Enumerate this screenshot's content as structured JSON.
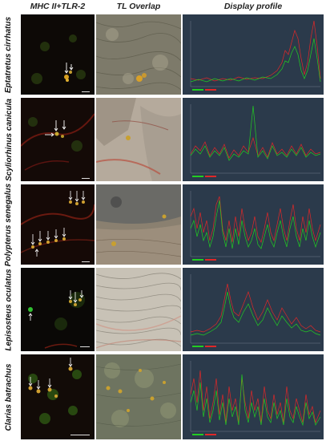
{
  "headers": {
    "col1": "MHC II+TLR-2",
    "col2": "TL Overlap",
    "col3": "Display profile"
  },
  "rows": [
    {
      "label": "Eptatretus cirrhatus"
    },
    {
      "label": "Scyliorhinus canicula"
    },
    {
      "label": "Polypterus senegalus"
    },
    {
      "label": "Lepisosteus oculatus"
    },
    {
      "label": "Clarias batrachus"
    }
  ],
  "colors": {
    "fluor_background": "#0d0906",
    "green_channel": "#22cc22",
    "red_channel": "#e02828",
    "profile_background": "#2b3a4b",
    "marker_arrows": "#ffffff"
  },
  "icons": [
    "arrow-marker-icon",
    "scale-bar"
  ]
}
